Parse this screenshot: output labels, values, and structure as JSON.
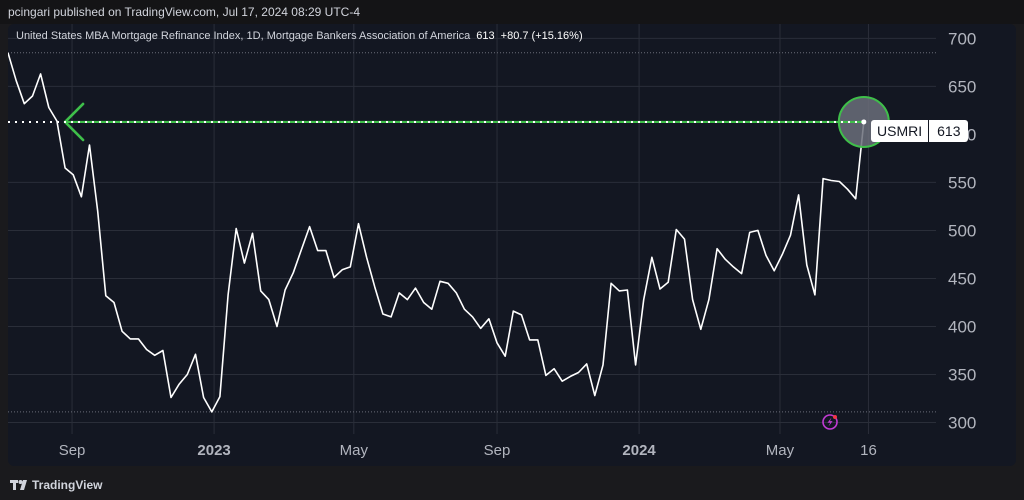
{
  "header": {
    "publisher_line": "pcingari published on TradingView.com, Jul 17, 2024 08:29 UTC-4"
  },
  "legend": {
    "title": "United States MBA Mortgage Refinance Index, 1D, Mortgage Bankers Association of America",
    "value": "613",
    "change": "+80.7 (+15.16%)"
  },
  "badge": {
    "symbol": "USMRI",
    "price": "613"
  },
  "footer": {
    "brand": "TradingView"
  },
  "colors": {
    "background": "#131722",
    "line": "#ffffff",
    "grid": "#2a2e39",
    "axis_text": "#b2b5be",
    "arrow": "#3fbf4a",
    "circle_fill": "#6b6f7a",
    "flash_icon": "#c23bd4"
  },
  "icons": [
    "tradingview-logo-icon",
    "flash-icon",
    "arrow-left-icon"
  ],
  "chart_data": {
    "type": "line",
    "title": "United States MBA Mortgage Refinance Index, 1D",
    "xlabel": "",
    "ylabel": "",
    "x_ticks": [
      {
        "label": "Sep",
        "x": "2022-09-01",
        "bold": false
      },
      {
        "label": "2023",
        "x": "2023-01-01",
        "bold": true
      },
      {
        "label": "May",
        "x": "2023-05-01",
        "bold": false
      },
      {
        "label": "Sep",
        "x": "2023-09-01",
        "bold": false
      },
      {
        "label": "2024",
        "x": "2024-01-01",
        "bold": true
      },
      {
        "label": "May",
        "x": "2024-05-01",
        "bold": false
      },
      {
        "label": "16",
        "x": "2024-07-16",
        "bold": false
      }
    ],
    "y_ticks": [
      300,
      350,
      400,
      450,
      500,
      550,
      650,
      700
    ],
    "ylim": [
      288,
      715
    ],
    "xlim": [
      "2022-07-08",
      "2024-09-12"
    ],
    "reference_lines": [
      685,
      311
    ],
    "last_value_line": 613,
    "series": [
      {
        "values": [
          [
            "2022-07-08",
            685
          ],
          [
            "2022-07-15",
            656
          ],
          [
            "2022-07-22",
            632
          ],
          [
            "2022-07-29",
            640
          ],
          [
            "2022-08-05",
            663
          ],
          [
            "2022-08-12",
            628
          ],
          [
            "2022-08-19",
            614
          ],
          [
            "2022-08-26",
            565
          ],
          [
            "2022-09-02",
            558
          ],
          [
            "2022-09-09",
            535
          ],
          [
            "2022-09-16",
            589
          ],
          [
            "2022-09-23",
            520
          ],
          [
            "2022-09-30",
            432
          ],
          [
            "2022-10-07",
            425
          ],
          [
            "2022-10-14",
            395
          ],
          [
            "2022-10-21",
            387
          ],
          [
            "2022-10-28",
            387
          ],
          [
            "2022-11-04",
            376
          ],
          [
            "2022-11-11",
            370
          ],
          [
            "2022-11-18",
            375
          ],
          [
            "2022-11-25",
            326
          ],
          [
            "2022-12-02",
            340
          ],
          [
            "2022-12-09",
            350
          ],
          [
            "2022-12-16",
            371
          ],
          [
            "2022-12-23",
            326
          ],
          [
            "2022-12-30",
            311
          ],
          [
            "2023-01-06",
            327
          ],
          [
            "2023-01-13",
            433
          ],
          [
            "2023-01-20",
            502
          ],
          [
            "2023-01-27",
            466
          ],
          [
            "2023-02-03",
            497
          ],
          [
            "2023-02-10",
            437
          ],
          [
            "2023-02-17",
            428
          ],
          [
            "2023-02-24",
            400
          ],
          [
            "2023-03-03",
            438
          ],
          [
            "2023-03-10",
            456
          ],
          [
            "2023-03-17",
            480
          ],
          [
            "2023-03-24",
            504
          ],
          [
            "2023-03-31",
            479
          ],
          [
            "2023-04-07",
            479
          ],
          [
            "2023-04-14",
            451
          ],
          [
            "2023-04-21",
            459
          ],
          [
            "2023-04-28",
            462
          ],
          [
            "2023-05-05",
            507
          ],
          [
            "2023-05-12",
            472
          ],
          [
            "2023-05-19",
            441
          ],
          [
            "2023-05-26",
            413
          ],
          [
            "2023-06-02",
            410
          ],
          [
            "2023-06-09",
            435
          ],
          [
            "2023-06-16",
            428
          ],
          [
            "2023-06-23",
            440
          ],
          [
            "2023-06-30",
            425
          ],
          [
            "2023-07-07",
            418
          ],
          [
            "2023-07-14",
            447
          ],
          [
            "2023-07-21",
            445
          ],
          [
            "2023-07-28",
            435
          ],
          [
            "2023-08-04",
            418
          ],
          [
            "2023-08-11",
            410
          ],
          [
            "2023-08-18",
            398
          ],
          [
            "2023-08-25",
            408
          ],
          [
            "2023-09-01",
            383
          ],
          [
            "2023-09-08",
            369
          ],
          [
            "2023-09-15",
            416
          ],
          [
            "2023-09-22",
            412
          ],
          [
            "2023-09-29",
            386
          ],
          [
            "2023-10-06",
            386
          ],
          [
            "2023-10-13",
            349
          ],
          [
            "2023-10-20",
            356
          ],
          [
            "2023-10-27",
            343
          ],
          [
            "2023-11-03",
            348
          ],
          [
            "2023-11-10",
            352
          ],
          [
            "2023-11-17",
            361
          ],
          [
            "2023-11-24",
            328
          ],
          [
            "2023-12-01",
            360
          ],
          [
            "2023-12-08",
            445
          ],
          [
            "2023-12-15",
            437
          ],
          [
            "2023-12-22",
            438
          ],
          [
            "2023-12-29",
            360
          ],
          [
            "2024-01-05",
            428
          ],
          [
            "2024-01-12",
            472
          ],
          [
            "2024-01-19",
            439
          ],
          [
            "2024-01-26",
            446
          ],
          [
            "2024-02-02",
            501
          ],
          [
            "2024-02-09",
            491
          ],
          [
            "2024-02-16",
            428
          ],
          [
            "2024-02-23",
            397
          ],
          [
            "2024-03-01",
            428
          ],
          [
            "2024-03-08",
            481
          ],
          [
            "2024-03-15",
            470
          ],
          [
            "2024-03-22",
            462
          ],
          [
            "2024-03-29",
            455
          ],
          [
            "2024-04-05",
            498
          ],
          [
            "2024-04-12",
            500
          ],
          [
            "2024-04-19",
            474
          ],
          [
            "2024-04-26",
            458
          ],
          [
            "2024-05-03",
            475
          ],
          [
            "2024-05-10",
            495
          ],
          [
            "2024-05-17",
            537
          ],
          [
            "2024-05-24",
            464
          ],
          [
            "2024-05-31",
            433
          ],
          [
            "2024-06-07",
            554
          ],
          [
            "2024-06-14",
            552
          ],
          [
            "2024-06-21",
            551
          ],
          [
            "2024-06-28",
            543
          ],
          [
            "2024-07-05",
            533
          ],
          [
            "2024-07-12",
            613
          ]
        ]
      }
    ],
    "annotations": [
      {
        "type": "arrow",
        "direction": "left",
        "from": [
          "2024-07-12",
          613
        ],
        "to": [
          "2022-08-26",
          613
        ]
      },
      {
        "type": "circle",
        "at": [
          "2024-07-12",
          613
        ]
      }
    ],
    "grid": true,
    "legend": "none"
  }
}
